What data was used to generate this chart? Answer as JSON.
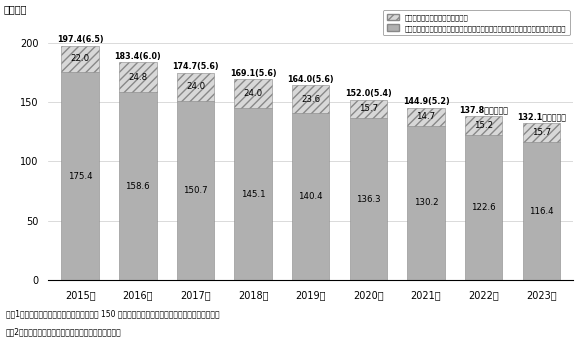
{
  "years": [
    "2015年",
    "2016年",
    "2017年",
    "2018年",
    "2019年",
    "2020年",
    "2021年",
    "2022年",
    "2023年"
  ],
  "bottom_values": [
    175.4,
    158.6,
    150.7,
    145.1,
    140.4,
    136.3,
    130.2,
    122.6,
    116.4
  ],
  "top_values": [
    22.0,
    24.8,
    24.0,
    24.0,
    23.6,
    15.7,
    14.7,
    15.2,
    15.7
  ],
  "totals": [
    "197.4",
    "183.4",
    "174.7",
    "169.1",
    "164.0",
    "152.0",
    "144.9",
    "137.8",
    "132.1"
  ],
  "new_farmers": [
    "6.5",
    "6.0",
    "5.6",
    "5.6",
    "5.6",
    "5.4",
    "5.2",
    "未発表",
    "未発表"
  ],
  "bottom_color": "#b0b0b0",
  "top_hatch_color": "#d8d8d8",
  "ylabel": "（万人）",
  "ylim": [
    0,
    230
  ],
  "yticks": [
    0,
    50,
    100,
    150,
    200
  ],
  "legend_label1": "常雇い：農業経営体の常雇い人数",
  "legend_label2": "基幹的農業従事者（個人経営体）：ふだん仕事として主に自営農業に従事している者",
  "note1": "注：1）団体経営体の役員・構成員（農業に 150 日以上従事した人数（経営主を含む））を除く。",
  "note2": "　　2）（　）内数値はうち数としての新規就農者数。",
  "background_color": "#ffffff"
}
